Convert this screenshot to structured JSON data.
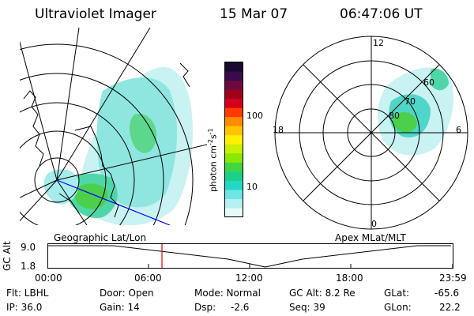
{
  "header": {
    "instrument": "Ultraviolet Imager",
    "date": "15 Mar 07",
    "time": "06:47:06 UT"
  },
  "colorbar": {
    "unit_label": "photon cm",
    "unit_sup1": "-2",
    "unit_mid": "s",
    "unit_sup2": "-1",
    "ticks": [
      "100",
      "10"
    ],
    "scale": "log",
    "colors": [
      "#1a0a2e",
      "#3a0a4a",
      "#6a0a40",
      "#a0001a",
      "#d4001a",
      "#ff3b00",
      "#ff8c00",
      "#ffc400",
      "#fff000",
      "#c8f000",
      "#8be800",
      "#3fd640",
      "#1ccf8a",
      "#22d9c4",
      "#6fe6e6",
      "#b4f0f0",
      "#e6fafa"
    ]
  },
  "left_map": {
    "title": "Geographic Lat/Lon"
  },
  "right_map": {
    "title": "Apex  MLat/MLT",
    "mlt_labels": {
      "top": "12",
      "left": "18",
      "right": "6",
      "bottom": "0"
    },
    "lat_labels": [
      "60",
      "70",
      "80"
    ]
  },
  "timeline": {
    "ylabel": "GC Alt",
    "y_ticks": [
      "9.0",
      "1.8"
    ],
    "x_ticks": [
      "00:00",
      "06:00",
      "12:00",
      "18:00",
      "23:59"
    ],
    "current_time_hours": 6.785,
    "curve": {
      "min_alt_hour": 12.9
    }
  },
  "info": {
    "filter": "Flt: LBHL",
    "ip": "IP: 36.0",
    "door": "Door: Open",
    "gain": "Gain: 14",
    "mode": "Mode: Normal",
    "dsp_label": "Dsp:",
    "dsp_value": "-2.6",
    "gc_alt": "GC Alt: 8.2 Re",
    "seq": "Seq: 39",
    "glat_label": "GLat:",
    "glat_value": "-65.6",
    "glon_label": "GLon:",
    "glon_value": "22.2"
  }
}
